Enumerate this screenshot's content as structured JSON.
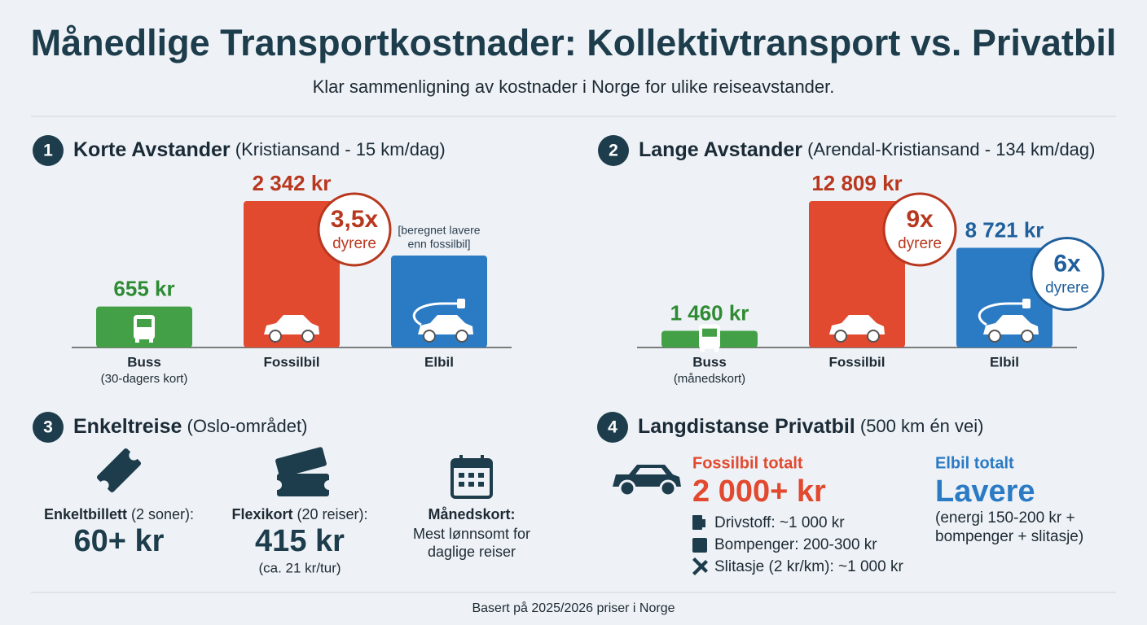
{
  "header": {
    "title": "Månedlige Transportkostnader: Kollektivtransport vs. Privatbil",
    "subtitle": "Klar sammenligning av kostnader i Norge for ulike reiseavstander."
  },
  "chart_data": [
    {
      "type": "bar",
      "number": "1",
      "title": "Korte Avstander",
      "subtitle": "(Kristiansand - 15 km/dag)",
      "categories": [
        "Buss",
        "Fossilbil",
        "Elbil"
      ],
      "category_notes": [
        "(30-dagers kort)",
        null,
        null
      ],
      "values": [
        655,
        2342,
        1470
      ],
      "value_labels": [
        "655 kr",
        "2 342 kr",
        null
      ],
      "colors": [
        "#43a047",
        "#e24a30",
        "#2b7bc4"
      ],
      "label_colors": [
        "#2e8b34",
        "#b8381f",
        "#1f5f9c"
      ],
      "badges": [
        null,
        {
          "text": "3,5x",
          "note": "dyrere",
          "color": "#b8381f"
        },
        null
      ],
      "annotations": [
        null,
        null,
        [
          "[beregnet lavere",
          "enn fossilbil]"
        ]
      ]
    },
    {
      "type": "bar",
      "number": "2",
      "title": "Lange Avstander",
      "subtitle": "(Arendal-Kristiansand - 134 km/dag)",
      "categories": [
        "Buss",
        "Fossilbil",
        "Elbil"
      ],
      "category_notes": [
        "(månedskort)",
        null,
        null
      ],
      "values": [
        1460,
        12809,
        8721
      ],
      "value_labels": [
        "1 460 kr",
        "12 809 kr",
        "8 721 kr"
      ],
      "colors": [
        "#43a047",
        "#e24a30",
        "#2b7bc4"
      ],
      "label_colors": [
        "#2e8b34",
        "#b8381f",
        "#1f5f9c"
      ],
      "badges": [
        null,
        {
          "text": "9x",
          "note": "dyrere",
          "color": "#b8381f"
        },
        {
          "text": "6x",
          "note": "dyrere",
          "color": "#1f5f9c"
        }
      ],
      "annotations": [
        null,
        null,
        null
      ]
    }
  ],
  "single_trip": {
    "number": "3",
    "title": "Enkeltreise",
    "subtitle": "(Oslo-området)",
    "items": [
      {
        "label": "Enkeltbillett",
        "label_note": "(2 soner):",
        "value": "60+ kr",
        "note": null
      },
      {
        "label": "Flexikort",
        "label_note": "(20 reiser):",
        "value": "415 kr",
        "note": "(ca. 21 kr/tur)"
      },
      {
        "label": "Månedskort:",
        "lines": [
          "Mest lønnsomt for",
          "daglige reiser"
        ]
      }
    ]
  },
  "long_distance": {
    "number": "4",
    "title": "Langdistanse Privatbil",
    "subtitle": "(500 km én vei)",
    "fossil": {
      "heading": "Fossilbil totalt",
      "value": "2 000+ kr",
      "lines": [
        "Drivstoff: ~1 000 kr",
        "Bompenger: 200-300 kr",
        "Slitasje (2 kr/km): ~1 000 kr"
      ]
    },
    "electric": {
      "heading": "Elbil totalt",
      "value": "Lavere",
      "lines": [
        "(energi 150-200 kr +",
        "bompenger + slitasje)"
      ]
    }
  },
  "footer": "Basert på 2025/2026 priser i Norge"
}
